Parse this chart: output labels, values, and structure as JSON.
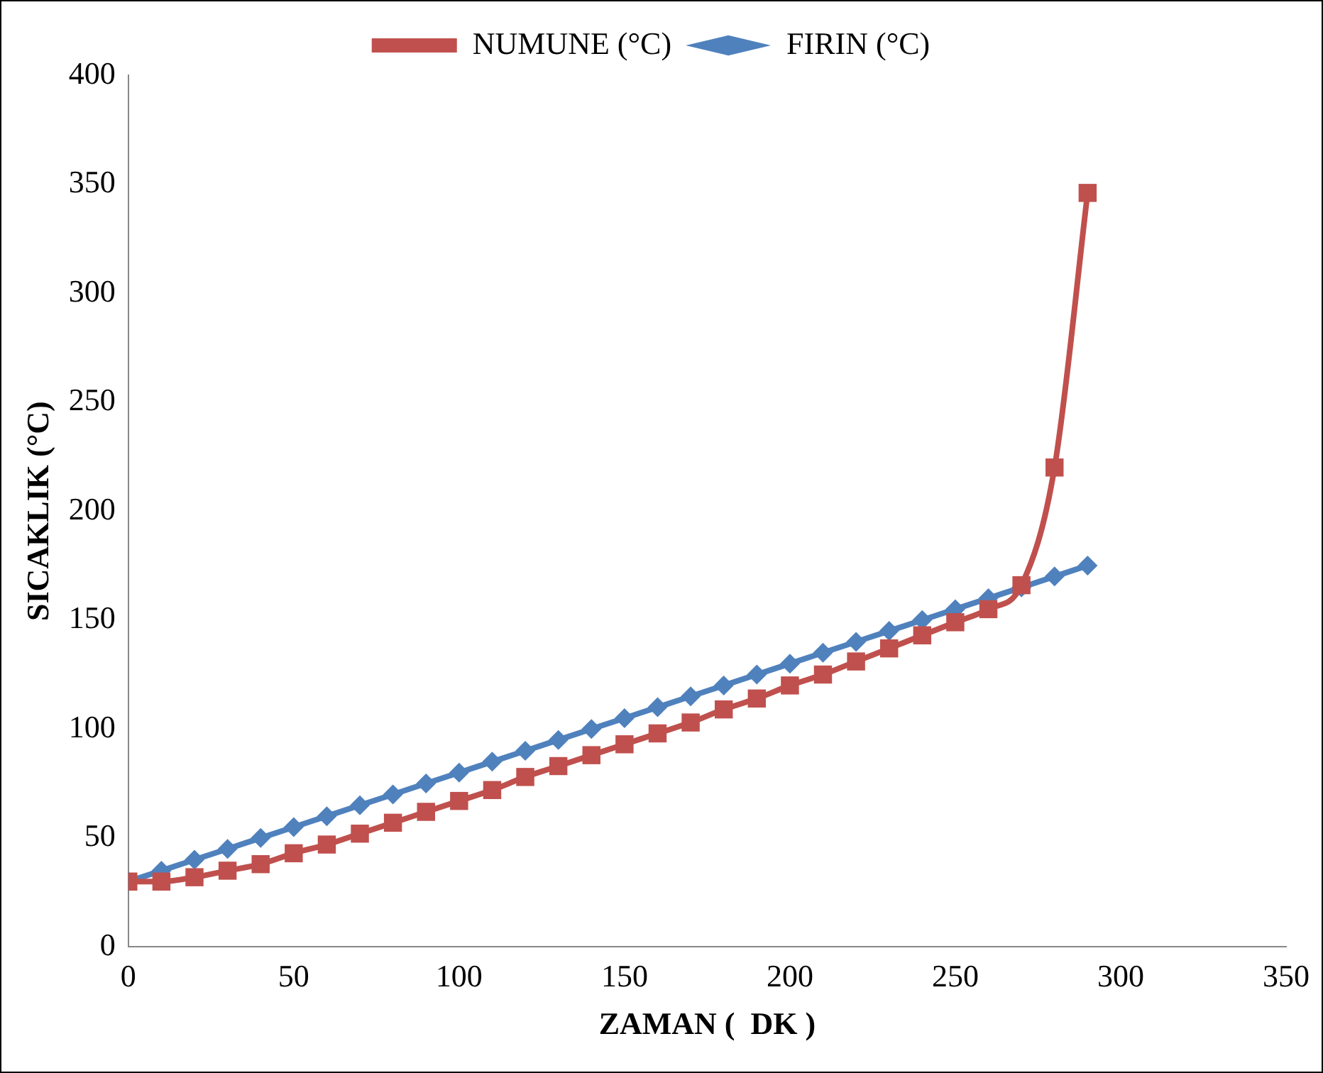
{
  "chart_data": {
    "type": "line",
    "xlabel": "ZAMAN (  DK )",
    "ylabel": "SICAKLIK (°C)",
    "x": [
      0,
      10,
      20,
      30,
      40,
      50,
      60,
      70,
      80,
      90,
      100,
      110,
      120,
      130,
      140,
      150,
      160,
      170,
      180,
      190,
      200,
      210,
      220,
      230,
      240,
      250,
      260,
      270,
      280,
      290
    ],
    "series": [
      {
        "name": "NUMUNE (°C)",
        "color": "#c0504d",
        "marker": "square",
        "values": [
          30,
          30,
          32,
          35,
          38,
          43,
          47,
          52,
          57,
          62,
          67,
          72,
          78,
          83,
          88,
          93,
          98,
          103,
          109,
          114,
          120,
          125,
          131,
          137,
          143,
          149,
          155,
          166,
          220,
          346
        ]
      },
      {
        "name": "FIRIN (°C)",
        "color": "#4f81bd",
        "marker": "diamond",
        "values": [
          30,
          35,
          40,
          45,
          50,
          55,
          60,
          65,
          70,
          75,
          80,
          85,
          90,
          95,
          100,
          105,
          110,
          115,
          120,
          125,
          130,
          135,
          140,
          145,
          150,
          155,
          160,
          165,
          170,
          175
        ]
      }
    ],
    "xlim": [
      0,
      350
    ],
    "xticks": [
      0,
      50,
      100,
      150,
      200,
      250,
      300,
      350
    ],
    "ylim": [
      0,
      400
    ],
    "yticks": [
      0,
      50,
      100,
      150,
      200,
      250,
      300,
      350,
      400
    ],
    "grid": false,
    "legend": "top"
  }
}
